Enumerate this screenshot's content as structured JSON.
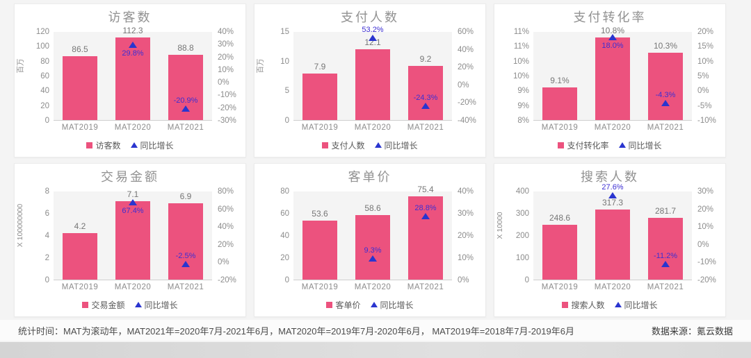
{
  "colors": {
    "bar": "#ec527e",
    "triangle": "#2a35cf",
    "growth_label": "#3d2fd2",
    "title": "#929292",
    "axis": "#8c8c8c",
    "bar_label": "#767676"
  },
  "footer": {
    "stats_time": "统计时间：MAT为滚动年，MAT2021年=2020年7月-2021年6月，MAT2020年=2019年7月-2020年6月， MAT2019年=2018年7月-2019年6月",
    "source": "数据来源：氪云数据"
  },
  "chart_data": [
    {
      "id": "visitors",
      "type": "bar",
      "title": "访客数",
      "unit": "百万",
      "categories": [
        "MAT2019",
        "MAT2020",
        "MAT2021"
      ],
      "series": [
        {
          "name": "访客数",
          "type": "bar",
          "axis": "left",
          "values": [
            86.5,
            112.3,
            88.8
          ],
          "labels": [
            "86.5",
            "112.3",
            "88.8"
          ]
        },
        {
          "name": "同比增长",
          "type": "scatter-triangle",
          "axis": "right",
          "points": [
            {
              "category": "MAT2020",
              "value": 29.8,
              "label": "29.8%",
              "label_pos": "below"
            },
            {
              "category": "MAT2021",
              "value": -20.9,
              "label": "-20.9%",
              "label_pos": "above"
            }
          ]
        }
      ],
      "left_axis": {
        "min": 0,
        "max": 120,
        "ticks": [
          "120",
          "100",
          "80",
          "60",
          "40",
          "20",
          "0"
        ]
      },
      "right_axis": {
        "min": -30,
        "max": 40,
        "ticks": [
          "40%",
          "30%",
          "20%",
          "10%",
          "0%",
          "-10%",
          "-20%",
          "-30%"
        ]
      }
    },
    {
      "id": "payers",
      "type": "bar",
      "title": "支付人数",
      "unit": "百万",
      "categories": [
        "MAT2019",
        "MAT2020",
        "MAT2021"
      ],
      "series": [
        {
          "name": "支付人数",
          "type": "bar",
          "axis": "left",
          "values": [
            7.9,
            12.1,
            9.2
          ],
          "labels": [
            "7.9",
            "12.1",
            "9.2"
          ]
        },
        {
          "name": "同比增长",
          "type": "scatter-triangle",
          "axis": "right",
          "points": [
            {
              "category": "MAT2020",
              "value": 53.2,
              "label": "53.2%",
              "label_pos": "above"
            },
            {
              "category": "MAT2021",
              "value": -24.3,
              "label": "-24.3%",
              "label_pos": "above"
            }
          ]
        }
      ],
      "left_axis": {
        "min": 0,
        "max": 15,
        "ticks": [
          "15",
          "10",
          "5",
          "0"
        ]
      },
      "right_axis": {
        "min": -40,
        "max": 60,
        "ticks": [
          "60%",
          "40%",
          "20%",
          "0%",
          "-20%",
          "-40%"
        ]
      }
    },
    {
      "id": "conversion-rate",
      "type": "bar",
      "title": "支付转化率",
      "unit": "",
      "categories": [
        "MAT2019",
        "MAT2020",
        "MAT2021"
      ],
      "series": [
        {
          "name": "支付转化率",
          "type": "bar",
          "axis": "left",
          "values": [
            9.1,
            10.8,
            10.3
          ],
          "labels": [
            "9.1%",
            "10.8%",
            "10.3%"
          ]
        },
        {
          "name": "同比增长",
          "type": "scatter-triangle",
          "axis": "right",
          "points": [
            {
              "category": "MAT2020",
              "value": 18.0,
              "label": "18.0%",
              "label_pos": "below"
            },
            {
              "category": "MAT2021",
              "value": -4.3,
              "label": "-4.3%",
              "label_pos": "above"
            }
          ]
        }
      ],
      "left_axis": {
        "min": 8,
        "max": 11,
        "ticks": [
          "11%",
          "11%",
          "10%",
          "10%",
          "9%",
          "9%",
          "8%"
        ]
      },
      "right_axis": {
        "min": -10,
        "max": 20,
        "ticks": [
          "20%",
          "15%",
          "10%",
          "5%",
          "0%",
          "-5%",
          "-10%"
        ]
      }
    },
    {
      "id": "transaction-amount",
      "type": "bar",
      "title": "交易金额",
      "unit": "X 100000000",
      "categories": [
        "MAT2019",
        "MAT2020",
        "MAT2021"
      ],
      "series": [
        {
          "name": "交易金额",
          "type": "bar",
          "axis": "left",
          "values": [
            4.2,
            7.1,
            6.9
          ],
          "labels": [
            "4.2",
            "7.1",
            "6.9"
          ]
        },
        {
          "name": "同比增长",
          "type": "scatter-triangle",
          "axis": "right",
          "points": [
            {
              "category": "MAT2020",
              "value": 67.4,
              "label": "67.4%",
              "label_pos": "below"
            },
            {
              "category": "MAT2021",
              "value": -2.5,
              "label": "-2.5%",
              "label_pos": "above"
            }
          ]
        }
      ],
      "left_axis": {
        "min": 0,
        "max": 8,
        "ticks": [
          "8",
          "6",
          "4",
          "2",
          "0"
        ]
      },
      "right_axis": {
        "min": -20,
        "max": 80,
        "ticks": [
          "80%",
          "60%",
          "40%",
          "20%",
          "0%",
          "-20%"
        ]
      }
    },
    {
      "id": "price-per-customer",
      "type": "bar",
      "title": "客单价",
      "unit": "",
      "categories": [
        "MAT2019",
        "MAT2020",
        "MAT2021"
      ],
      "series": [
        {
          "name": "客单价",
          "type": "bar",
          "axis": "left",
          "values": [
            53.6,
            58.6,
            75.4
          ],
          "labels": [
            "53.6",
            "58.6",
            "75.4"
          ]
        },
        {
          "name": "同比增长",
          "type": "scatter-triangle",
          "axis": "right",
          "points": [
            {
              "category": "MAT2020",
              "value": 9.3,
              "label": "9.3%",
              "label_pos": "above"
            },
            {
              "category": "MAT2021",
              "value": 28.8,
              "label": "28.8%",
              "label_pos": "above"
            }
          ]
        }
      ],
      "left_axis": {
        "min": 0,
        "max": 80,
        "ticks": [
          "80",
          "60",
          "40",
          "20",
          "0"
        ]
      },
      "right_axis": {
        "min": 0,
        "max": 40,
        "ticks": [
          "40%",
          "30%",
          "20%",
          "10%",
          "0%"
        ]
      }
    },
    {
      "id": "searchers",
      "type": "bar",
      "title": "搜索人数",
      "unit": "X 10000",
      "categories": [
        "MAT2019",
        "MAT2020",
        "MAT2021"
      ],
      "series": [
        {
          "name": "搜索人数",
          "type": "bar",
          "axis": "left",
          "values": [
            248.6,
            317.3,
            281.7
          ],
          "labels": [
            "248.6",
            "317.3",
            "281.7"
          ]
        },
        {
          "name": "同比增长",
          "type": "scatter-triangle",
          "axis": "right",
          "points": [
            {
              "category": "MAT2020",
              "value": 27.6,
              "label": "27.6%",
              "label_pos": "above"
            },
            {
              "category": "MAT2021",
              "value": -11.2,
              "label": "-11.2%",
              "label_pos": "above"
            }
          ]
        }
      ],
      "left_axis": {
        "min": 0,
        "max": 400,
        "ticks": [
          "400",
          "300",
          "200",
          "100",
          "0"
        ]
      },
      "right_axis": {
        "min": -20,
        "max": 30,
        "ticks": [
          "30%",
          "20%",
          "10%",
          "0%",
          "-10%",
          "-20%"
        ]
      }
    }
  ]
}
